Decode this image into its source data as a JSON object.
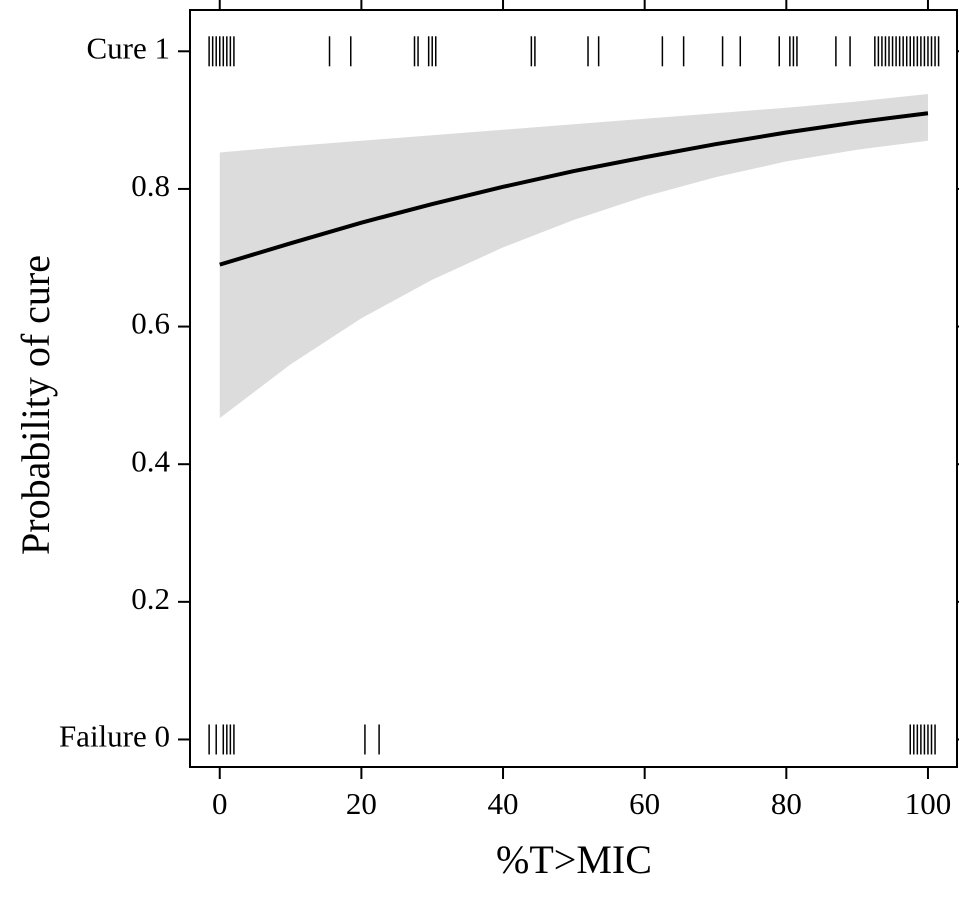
{
  "chart_data": {
    "type": "line",
    "x_label": "%T>MIC",
    "y_label": "Probability of cure",
    "x": [
      0,
      10,
      20,
      30,
      40,
      50,
      60,
      70,
      80,
      90,
      100
    ],
    "values": [
      0.69,
      0.721,
      0.751,
      0.778,
      0.803,
      0.826,
      0.846,
      0.865,
      0.882,
      0.897,
      0.91
    ],
    "color": "#000000",
    "band": {
      "color": "#dcdcdc",
      "lower": [
        0.467,
        0.545,
        0.612,
        0.668,
        0.715,
        0.755,
        0.789,
        0.817,
        0.84,
        0.857,
        0.87
      ],
      "upper": [
        0.853,
        0.862,
        0.87,
        0.878,
        0.886,
        0.894,
        0.902,
        0.91,
        0.918,
        0.927,
        0.938
      ]
    },
    "rug": [
      {
        "y": 1,
        "x": [
          -1.5,
          -1,
          -0.5,
          0,
          0.5,
          1,
          1.5,
          2,
          15.5,
          18.5,
          27.5,
          28,
          29.5,
          30,
          30.5,
          44,
          44.5,
          52,
          53.5,
          62.5,
          65.5,
          71,
          73.5,
          79,
          80.5,
          81,
          81.5,
          87,
          89,
          92.5,
          93,
          93.5,
          94,
          94.5,
          95,
          95.5,
          96,
          96.5,
          97,
          97.5,
          98,
          98.5,
          99,
          99.5,
          100,
          100.5,
          101,
          101.5
        ]
      },
      {
        "y": 0,
        "x": [
          -1.5,
          -0.5,
          0.5,
          1,
          1.5,
          2,
          20.5,
          22.5,
          97.5,
          98,
          98.5,
          99,
          99.5,
          100,
          100.5,
          101
        ]
      }
    ],
    "xlim": [
      -4.2,
      104.1
    ],
    "ylim": [
      -0.04,
      1.06
    ],
    "xticks": [
      0,
      20,
      40,
      60,
      80,
      100
    ],
    "yticks": [
      {
        "value": 0,
        "label": "Failure 0"
      },
      0.2,
      0.4,
      0.6,
      0.8,
      {
        "value": 1,
        "label": "Cure 1"
      }
    ]
  }
}
